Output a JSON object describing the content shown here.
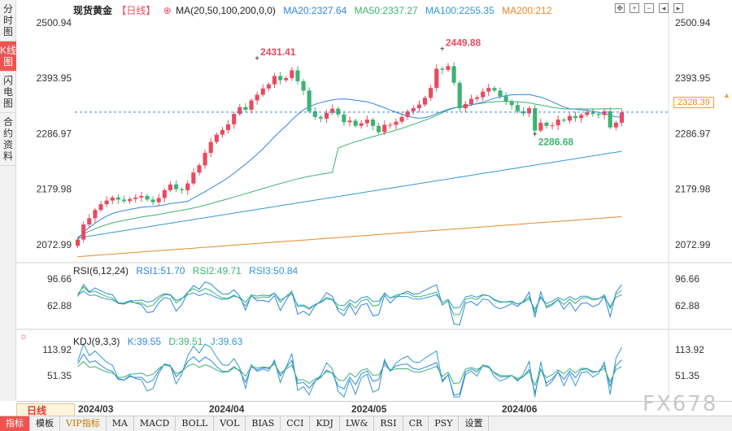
{
  "side_tabs": [
    {
      "label": "分时图",
      "active": false
    },
    {
      "label": "K线图",
      "active": true
    },
    {
      "label": "闪电图",
      "active": false
    },
    {
      "label": "合约资料",
      "active": false
    }
  ],
  "header": {
    "title": "现货黄金",
    "period_tag": "【日线】",
    "ma_label": "MA(20,50,100,200,0,0)",
    "ma20": "MA20:2327.64",
    "ma50": "MA50:2337.27",
    "ma100": "MA100:2255.35",
    "ma200": "MA200:212"
  },
  "colors": {
    "up": "#e84a5f",
    "down": "#3cb371",
    "ma20": "#2e86de",
    "ma50": "#3cb371",
    "ma100": "#3399cc",
    "ma200": "#e8882a",
    "last_price": "#f29d38"
  },
  "price_axis": {
    "ticks": [
      "2500.94",
      "2393.95",
      "2286.97",
      "2179.98",
      "2072.99"
    ],
    "values": [
      2500.94,
      2393.95,
      2286.97,
      2179.98,
      2072.99
    ]
  },
  "annotations": {
    "high1": "2431.41",
    "high2": "2449.88",
    "low1": "2286.68"
  },
  "last_price": "2328.39",
  "rsi": {
    "label": "RSI(6,12,24)",
    "rsi1": "RSI1:51.70",
    "rsi2": "RSI2:49.71",
    "rsi3": "RSI3:50.84",
    "ticks": [
      "96.66",
      "62.88"
    ]
  },
  "kdj": {
    "label": "KDJ(9,3,3)",
    "k": "K:39.55",
    "d": "D:39.51",
    "j": "J:39.63",
    "ticks": [
      "113.92",
      "51.35"
    ]
  },
  "dates": [
    "2024/03",
    "2024/04",
    "2024/05",
    "2024/06"
  ],
  "period_button": "日线",
  "bottom_tabs": [
    "指标",
    "模板",
    "VIP指标",
    "MA",
    "MACD",
    "BOLL",
    "VOL",
    "BIAS",
    "CCI",
    "KDJ",
    "LW&",
    "RSI",
    "CR",
    "PSY",
    "设置"
  ],
  "watermark": "FX678",
  "chart_data": {
    "type": "candlestick",
    "title": "现货黄金",
    "ylim": [
      2040,
      2510
    ],
    "closes": [
      2083,
      2112,
      2124,
      2140,
      2151,
      2158,
      2164,
      2160,
      2157,
      2161,
      2164,
      2167,
      2160,
      2155,
      2163,
      2178,
      2189,
      2180,
      2178,
      2191,
      2212,
      2226,
      2250,
      2271,
      2285,
      2294,
      2305,
      2325,
      2338,
      2333,
      2351,
      2362,
      2374,
      2382,
      2398,
      2390,
      2394,
      2409,
      2388,
      2370,
      2330,
      2319,
      2316,
      2327,
      2335,
      2324,
      2309,
      2312,
      2302,
      2307,
      2314,
      2302,
      2290,
      2304,
      2304,
      2310,
      2319,
      2330,
      2336,
      2343,
      2356,
      2375,
      2412,
      2410,
      2417,
      2385,
      2336,
      2344,
      2354,
      2357,
      2368,
      2375,
      2370,
      2359,
      2349,
      2342,
      2330,
      2326,
      2336,
      2293,
      2308,
      2302,
      2303,
      2314,
      2312,
      2321,
      2317,
      2323,
      2328,
      2325,
      2323,
      2330,
      2299,
      2308,
      2328
    ]
  }
}
